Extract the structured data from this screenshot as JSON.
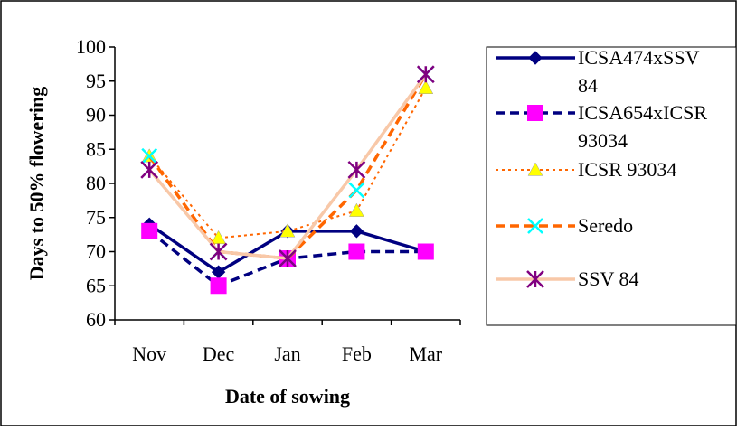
{
  "chart_data": {
    "type": "line",
    "title": "",
    "xlabel": "Date of sowing",
    "ylabel": "Days to 50% flowering",
    "categories": [
      "Nov",
      "Dec",
      "Jan",
      "Feb",
      "Mar"
    ],
    "ylim": [
      60,
      100
    ],
    "yticks": [
      "60",
      "65",
      "70",
      "75",
      "80",
      "85",
      "90",
      "95",
      "100"
    ],
    "grid": false,
    "legend_position": "right",
    "series": [
      {
        "name": "ICSA474xSSV 84",
        "legend_lines": [
          "ICSA474xSSV",
          "84"
        ],
        "values": [
          74,
          67,
          73,
          73,
          70
        ],
        "color": "#000080",
        "line_style": "solid",
        "marker": "diamond",
        "marker_color": "#000080"
      },
      {
        "name": "ICSA654xICSR 93034",
        "legend_lines": [
          "ICSA654xICSR",
          "93034"
        ],
        "values": [
          73,
          65,
          69,
          70,
          70
        ],
        "color": "#000080",
        "line_style": "dashed",
        "marker": "square",
        "marker_color": "#ff00ff"
      },
      {
        "name": "ICSR 93034",
        "legend_lines": [
          "ICSR 93034"
        ],
        "values": [
          84,
          72,
          73,
          76,
          94
        ],
        "color": "#ff6600",
        "line_style": "dotted",
        "marker": "triangle",
        "marker_color": "#ffff00"
      },
      {
        "name": "Seredo",
        "legend_lines": [
          "Seredo"
        ],
        "values": [
          84,
          70,
          69,
          79,
          96
        ],
        "color": "#ff6600",
        "line_style": "dashed",
        "marker": "x",
        "marker_color": "#00ffff"
      },
      {
        "name": "SSV 84",
        "legend_lines": [
          "SSV 84"
        ],
        "values": [
          82,
          70,
          69,
          82,
          96
        ],
        "color": "#f8c8a8",
        "line_style": "solid",
        "marker": "asterisk",
        "marker_color": "#800080"
      }
    ]
  }
}
